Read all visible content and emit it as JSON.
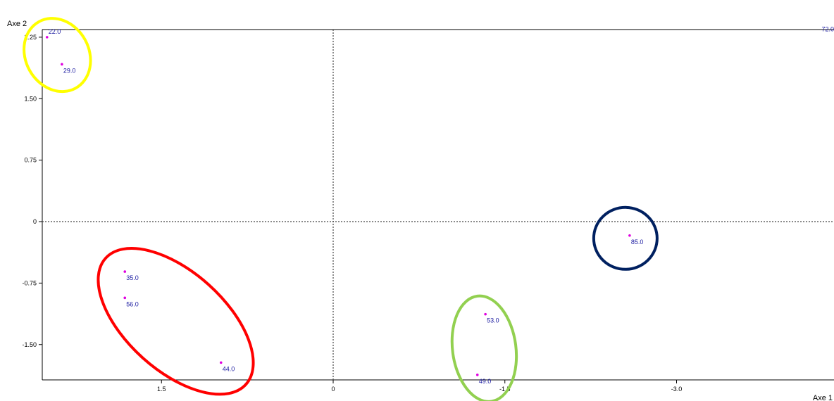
{
  "chart_data": {
    "type": "scatter",
    "title": "",
    "xlabel": "Axe 1",
    "ylabel": "Axe 2",
    "x_reversed": true,
    "xlim": [
      2.55,
      -4.4
    ],
    "ylim": [
      -1.9,
      2.35
    ],
    "x_ticks": [
      {
        "value": 1.5,
        "label": "1.5"
      },
      {
        "value": 0,
        "label": "0"
      },
      {
        "value": -1.5,
        "label": "-1.5"
      },
      {
        "value": -3.0,
        "label": "-3.0"
      }
    ],
    "y_ticks": [
      {
        "value": 2.25,
        "label": "2.25"
      },
      {
        "value": 1.5,
        "label": "1.50"
      },
      {
        "value": 0.75,
        "label": "0.75"
      },
      {
        "value": 0,
        "label": "0"
      },
      {
        "value": -0.75,
        "label": "-0.75"
      },
      {
        "value": -1.5,
        "label": "-1.50"
      }
    ],
    "grid": false,
    "zero_lines": "dotted",
    "point_color": "#e000e0",
    "label_color": "#1a1aa0",
    "points": [
      {
        "label": "22.0",
        "x": 2.5,
        "y": 2.25
      },
      {
        "label": "29.0",
        "x": 2.37,
        "y": 1.92
      },
      {
        "label": "72.0",
        "x": -4.4,
        "y": 2.28
      },
      {
        "label": "35.0",
        "x": 1.82,
        "y": -0.61
      },
      {
        "label": "56.0",
        "x": 1.82,
        "y": -0.93
      },
      {
        "label": "44.0",
        "x": 0.98,
        "y": -1.72
      },
      {
        "label": "53.0",
        "x": -1.33,
        "y": -1.13
      },
      {
        "label": "49.0",
        "x": -1.26,
        "y": -1.87
      },
      {
        "label": "85.0",
        "x": -2.59,
        "y": -0.17
      }
    ],
    "highlight_groups": [
      {
        "color": "#ffff00",
        "members": [
          "22.0",
          "29.0"
        ]
      },
      {
        "color": "#ff0000",
        "members": [
          "35.0",
          "56.0",
          "44.0"
        ]
      },
      {
        "color": "#92d050",
        "members": [
          "53.0",
          "49.0"
        ]
      },
      {
        "color": "#002060",
        "members": [
          "85.0"
        ]
      }
    ]
  }
}
